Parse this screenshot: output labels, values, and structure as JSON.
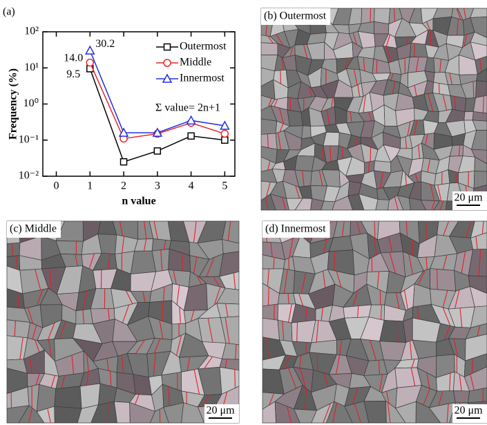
{
  "chart_data": {
    "type": "line",
    "panel_label": "(a)",
    "x_label": "n value",
    "y_label": "Frequency (%)",
    "annotation": "Σ value= 2n+1",
    "log_y": true,
    "x": [
      1,
      2,
      3,
      4,
      5
    ],
    "xlim": [
      -0.4,
      5.3
    ],
    "xticks": [
      0,
      1,
      2,
      3,
      4,
      5
    ],
    "ylim": [
      0.01,
      100
    ],
    "yticks": [
      {
        "value": 0.01,
        "label": "10⁻²"
      },
      {
        "value": 0.1,
        "label": "10⁻¹"
      },
      {
        "value": 1,
        "label": "10⁰"
      },
      {
        "value": 10,
        "label": "10¹"
      },
      {
        "value": 100,
        "label": "10²"
      }
    ],
    "series": [
      {
        "name": "Outermost",
        "color": "#000000",
        "marker": "square",
        "values": [
          9.5,
          0.025,
          0.05,
          0.13,
          0.1
        ],
        "value_labels": [
          "9.5",
          null,
          null,
          null,
          null
        ]
      },
      {
        "name": "Middle",
        "color": "#e8262a",
        "marker": "circle",
        "values": [
          14.0,
          0.11,
          0.15,
          0.3,
          0.15
        ],
        "value_labels": [
          "14.0",
          null,
          null,
          null,
          null
        ]
      },
      {
        "name": "Innermost",
        "color": "#2030e0",
        "marker": "triangle",
        "values": [
          30.2,
          0.16,
          0.16,
          0.35,
          0.25
        ],
        "value_labels": [
          "30.2",
          null,
          null,
          null,
          null
        ]
      }
    ]
  },
  "micrographs": [
    {
      "label": "(b) Outermost",
      "scale_bar": "20 μm"
    },
    {
      "label": "(c) Middle",
      "scale_bar": "20 μm"
    },
    {
      "label": "(d) Innermost",
      "scale_bar": "20 μm"
    }
  ]
}
